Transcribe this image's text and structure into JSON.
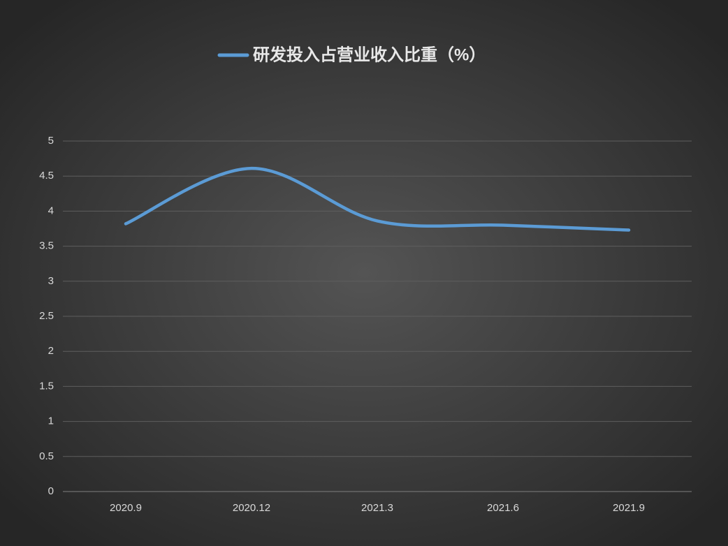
{
  "chart_data": {
    "type": "line",
    "categories": [
      "2020.9",
      "2020.12",
      "2021.3",
      "2021.6",
      "2021.9"
    ],
    "series": [
      {
        "name": "研发投入占营业收入比重（%）",
        "color": "#5b9bd5",
        "values": [
          3.82,
          4.61,
          3.86,
          3.8,
          3.73
        ]
      }
    ],
    "ylim": [
      0,
      5
    ],
    "yticks": [
      0,
      0.5,
      1,
      1.5,
      2,
      2.5,
      3,
      3.5,
      4,
      4.5,
      5
    ],
    "grid": true,
    "smooth": true,
    "legend": "top"
  }
}
